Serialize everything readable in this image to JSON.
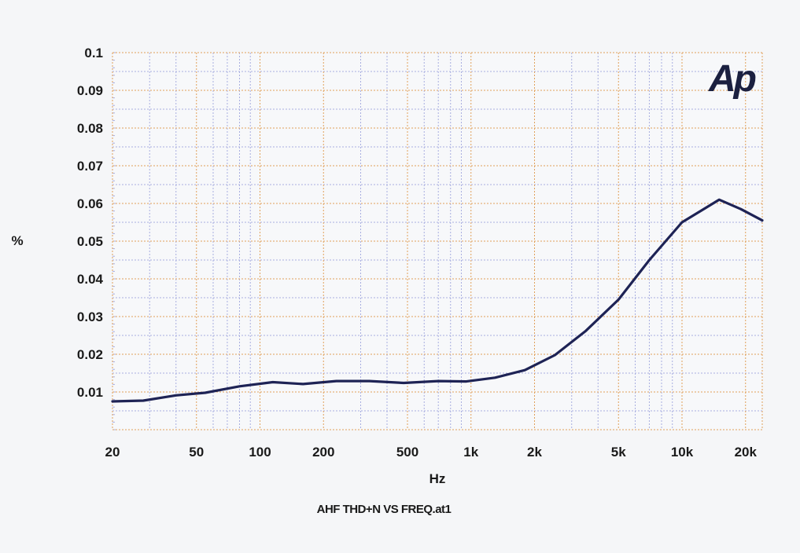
{
  "chart_data": {
    "type": "line",
    "title": "",
    "xlabel": "Hz",
    "ylabel": "%",
    "caption": "AHF THD+N VS FREQ.at1",
    "logo": "Ap",
    "x_scale": "log",
    "xlim": [
      20,
      24000
    ],
    "ylim": [
      0,
      0.1
    ],
    "grid": true,
    "legend": "none",
    "x_ticks": [
      {
        "value": 20,
        "label": "20"
      },
      {
        "value": 50,
        "label": "50"
      },
      {
        "value": 100,
        "label": "100"
      },
      {
        "value": 200,
        "label": "200"
      },
      {
        "value": 500,
        "label": "500"
      },
      {
        "value": 1000,
        "label": "1k"
      },
      {
        "value": 2000,
        "label": "2k"
      },
      {
        "value": 5000,
        "label": "5k"
      },
      {
        "value": 10000,
        "label": "10k"
      },
      {
        "value": 20000,
        "label": "20k"
      }
    ],
    "y_ticks": [
      {
        "value": 0.01,
        "label": "0.01"
      },
      {
        "value": 0.02,
        "label": "0.02"
      },
      {
        "value": 0.03,
        "label": "0.03"
      },
      {
        "value": 0.04,
        "label": "0.04"
      },
      {
        "value": 0.05,
        "label": "0.05"
      },
      {
        "value": 0.06,
        "label": "0.06"
      },
      {
        "value": 0.07,
        "label": "0.07"
      },
      {
        "value": 0.08,
        "label": "0.08"
      },
      {
        "value": 0.09,
        "label": "0.09"
      },
      {
        "value": 0.1,
        "label": "0.1"
      }
    ],
    "series": [
      {
        "color": "#1e2355",
        "points": [
          [
            20,
            0.0075
          ],
          [
            28,
            0.0077
          ],
          [
            40,
            0.0091
          ],
          [
            55,
            0.0098
          ],
          [
            80,
            0.0115
          ],
          [
            115,
            0.0126
          ],
          [
            160,
            0.0121
          ],
          [
            230,
            0.0129
          ],
          [
            330,
            0.0129
          ],
          [
            480,
            0.0124
          ],
          [
            700,
            0.0129
          ],
          [
            950,
            0.0128
          ],
          [
            1300,
            0.0138
          ],
          [
            1800,
            0.0158
          ],
          [
            2500,
            0.0198
          ],
          [
            3500,
            0.0262
          ],
          [
            5000,
            0.0345
          ],
          [
            7000,
            0.045
          ],
          [
            10000,
            0.055
          ],
          [
            15000,
            0.061
          ],
          [
            19000,
            0.0585
          ],
          [
            24000,
            0.0555
          ]
        ]
      }
    ],
    "colors": {
      "major_grid": "#e0a05a",
      "minor_grid": "#a8aee0",
      "line": "#1e2355"
    }
  }
}
